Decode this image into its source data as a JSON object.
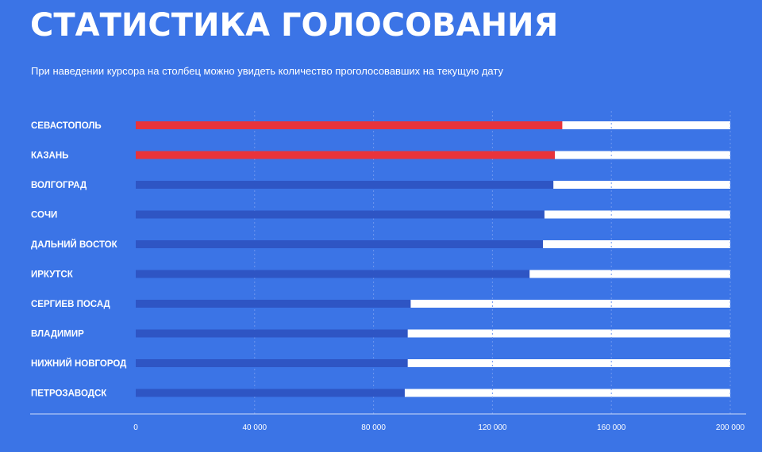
{
  "header": {
    "title": "СТАТИСТИКА ГОЛОСОВАНИЯ",
    "subtitle": "При наведении курсора на столбец можно увидеть количество проголосовавших на текущую дату"
  },
  "colors": {
    "background": "#3b74e6",
    "highlight_bar": "#e8333b",
    "default_bar": "#2e55c4",
    "remainder_bar": "#ffffff"
  },
  "chart_data": {
    "type": "bar",
    "orientation": "horizontal",
    "title": "СТАТИСТИКА ГОЛОСОВАНИЯ",
    "subtitle": "При наведении курсора на столбец можно увидеть количество проголосовавших на текущую дату",
    "categories": [
      "СЕВАСТОПОЛЬ",
      "КАЗАНЬ",
      "ВОЛГОГРАД",
      "СОЧИ",
      "ДАЛЬНИЙ ВОСТОК",
      "ИРКУТСК",
      "СЕРГИЕВ ПОСАД",
      "ВЛАДИМИР",
      "НИЖНИЙ НОВГОРОД",
      "ПЕТРОЗАВОДСК"
    ],
    "values": [
      143500,
      141000,
      140500,
      137500,
      137000,
      132500,
      92500,
      91500,
      91500,
      90500
    ],
    "highlighted": [
      true,
      true,
      false,
      false,
      false,
      false,
      false,
      false,
      false,
      false
    ],
    "xlim": [
      0,
      200000
    ],
    "xticks": [
      0,
      40000,
      80000,
      120000,
      160000,
      200000
    ],
    "xtick_labels": [
      "0",
      "40 000",
      "80 000",
      "120 000",
      "160 000",
      "200 000"
    ],
    "xlabel": "",
    "ylabel": "",
    "grid": true,
    "legend": "none"
  }
}
